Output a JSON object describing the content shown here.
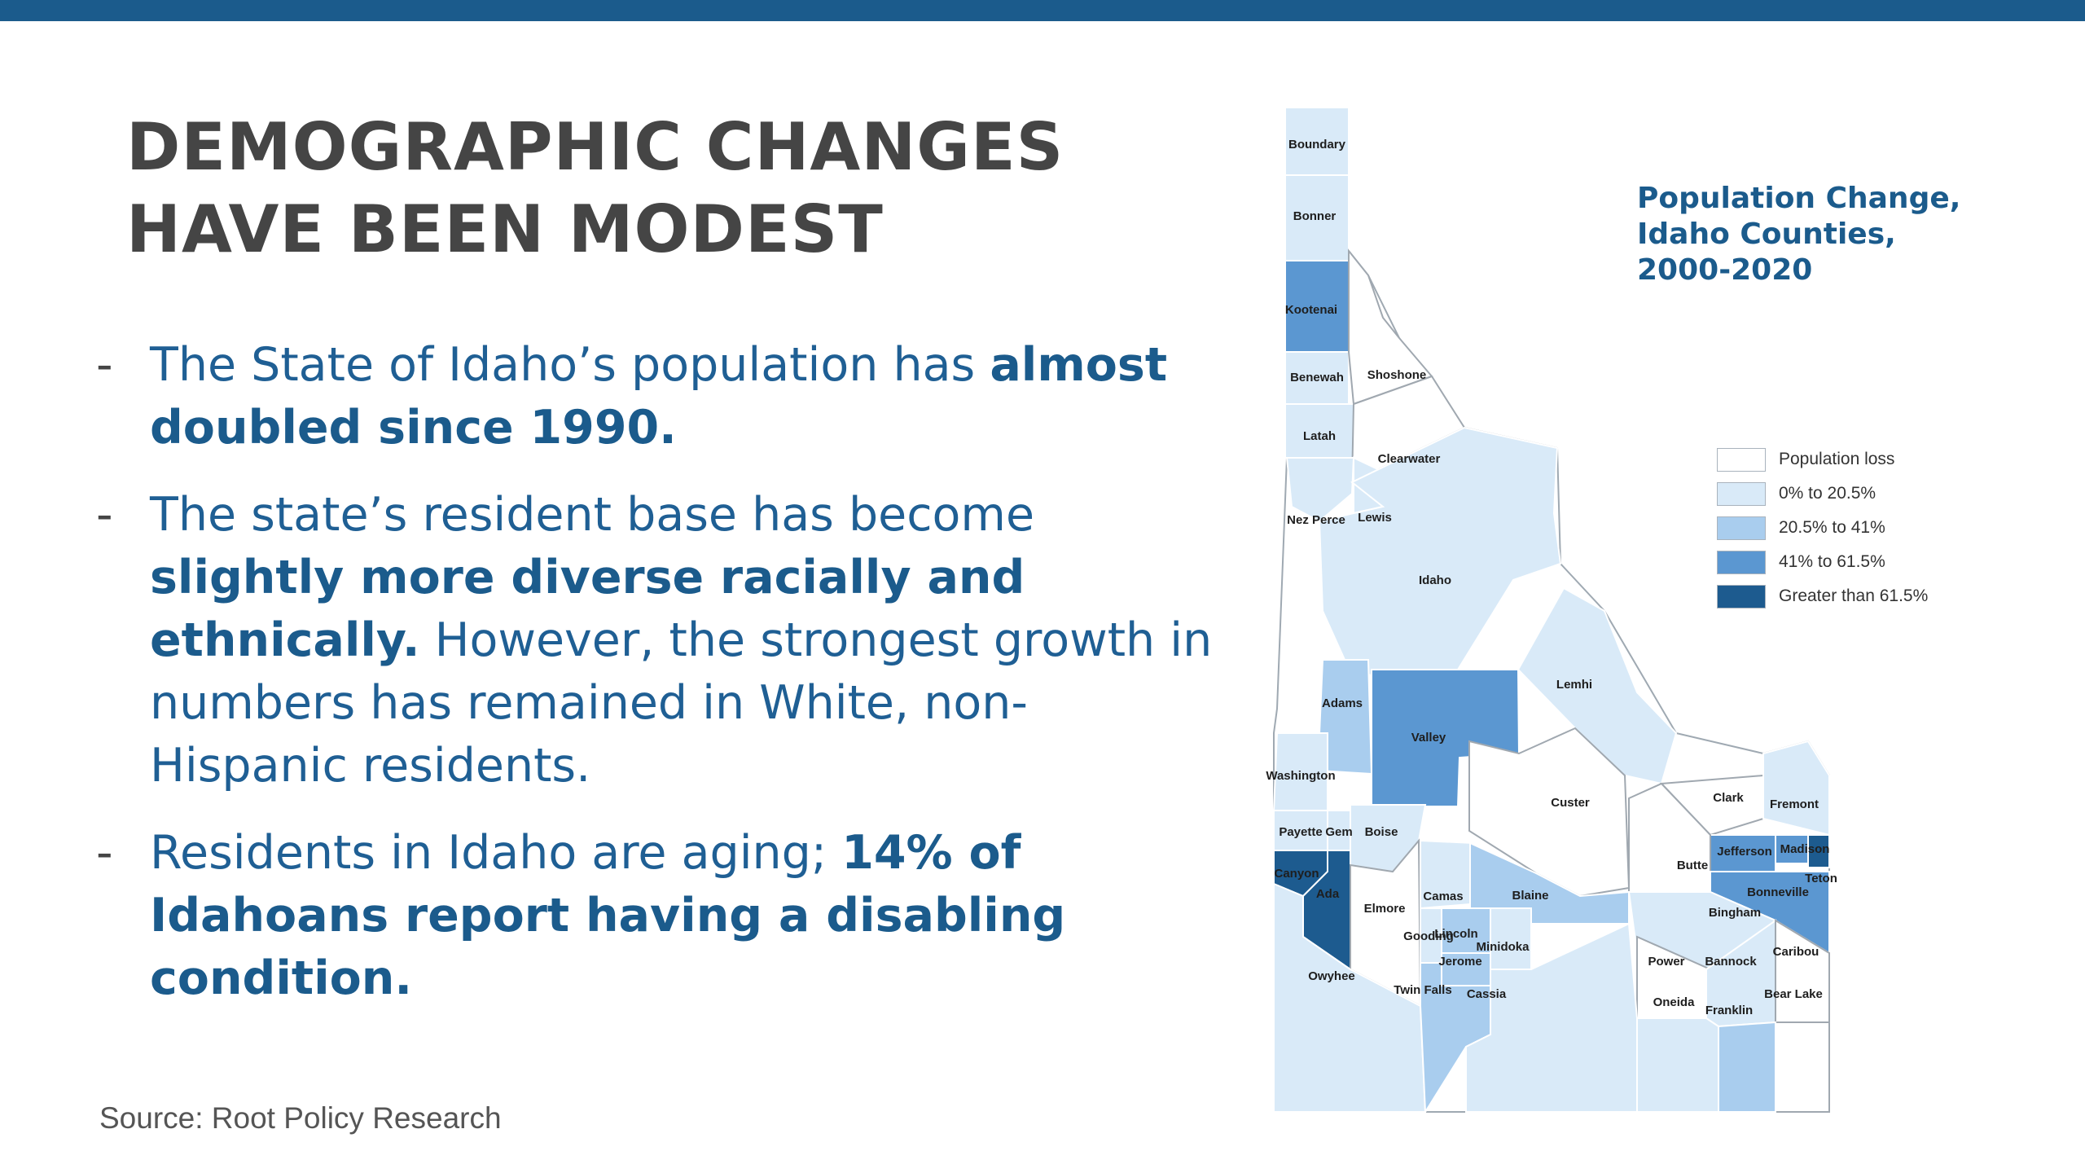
{
  "slide": {
    "title_lines": [
      "DEMOGRAPHIC CHANGES",
      "HAVE BEEN MODEST"
    ],
    "bullet_marker": "-",
    "bullets": [
      {
        "parts": [
          "The State of Idaho’s population has ",
          "almost doubled since 1990."
        ]
      },
      {
        "parts": [
          "The state’s resident base has become ",
          "slightly more diverse racially and ethnically.",
          " However, the strongest growth in numbers has remained in White, non-Hispanic residents."
        ]
      },
      {
        "parts": [
          "Residents in Idaho are aging; ",
          "14% of Idahoans report having a disabling condition."
        ]
      }
    ],
    "source": "Source: Root Policy Research"
  },
  "map": {
    "title_lines": [
      "Population Change,",
      "Idaho Counties,",
      "2000-2020"
    ],
    "legend": [
      {
        "label": "Population loss",
        "color": "#ffffff"
      },
      {
        "label": "0% to 20.5%",
        "color": "#d9eaf8"
      },
      {
        "label": "20.5% to 41%",
        "color": "#a9cdee"
      },
      {
        "label": "41% to 61.5%",
        "color": "#5b97d1"
      },
      {
        "label": "Greater than 61.5%",
        "color": "#1d5b8f"
      }
    ],
    "counties": [
      {
        "name": "Boundary",
        "class": 1
      },
      {
        "name": "Bonner",
        "class": 1
      },
      {
        "name": "Kootenai",
        "class": 3
      },
      {
        "name": "Benewah",
        "class": 1
      },
      {
        "name": "Shoshone",
        "class": 0
      },
      {
        "name": "Latah",
        "class": 1
      },
      {
        "name": "Clearwater",
        "class": 0
      },
      {
        "name": "Nez Perce",
        "class": 1
      },
      {
        "name": "Lewis",
        "class": 1
      },
      {
        "name": "Idaho",
        "class": 1
      },
      {
        "name": "Adams",
        "class": 2
      },
      {
        "name": "Valley",
        "class": 3
      },
      {
        "name": "Lemhi",
        "class": 1
      },
      {
        "name": "Washington",
        "class": 1
      },
      {
        "name": "Custer",
        "class": 0
      },
      {
        "name": "Clark",
        "class": 0
      },
      {
        "name": "Fremont",
        "class": 1
      },
      {
        "name": "Payette",
        "class": 1
      },
      {
        "name": "Gem",
        "class": 1
      },
      {
        "name": "Boise",
        "class": 1
      },
      {
        "name": "Madison",
        "class": 3
      },
      {
        "name": "Jefferson",
        "class": 3
      },
      {
        "name": "Teton",
        "class": 4
      },
      {
        "name": "Canyon",
        "class": 4
      },
      {
        "name": "Ada",
        "class": 4
      },
      {
        "name": "Butte",
        "class": 0
      },
      {
        "name": "Bonneville",
        "class": 3
      },
      {
        "name": "Elmore",
        "class": 0
      },
      {
        "name": "Camas",
        "class": 1
      },
      {
        "name": "Blaine",
        "class": 2
      },
      {
        "name": "Bingham",
        "class": 1
      },
      {
        "name": "Gooding",
        "class": 1
      },
      {
        "name": "Lincoln",
        "class": 2
      },
      {
        "name": "Minidoka",
        "class": 1
      },
      {
        "name": "Jerome",
        "class": 2
      },
      {
        "name": "Power",
        "class": 0
      },
      {
        "name": "Bannock",
        "class": 1
      },
      {
        "name": "Caribou",
        "class": 0
      },
      {
        "name": "Owyhee",
        "class": 1
      },
      {
        "name": "Twin Falls",
        "class": 2
      },
      {
        "name": "Cassia",
        "class": 1
      },
      {
        "name": "Oneida",
        "class": 1
      },
      {
        "name": "Bear Lake",
        "class": 0
      },
      {
        "name": "Franklin",
        "class": 2
      }
    ]
  }
}
